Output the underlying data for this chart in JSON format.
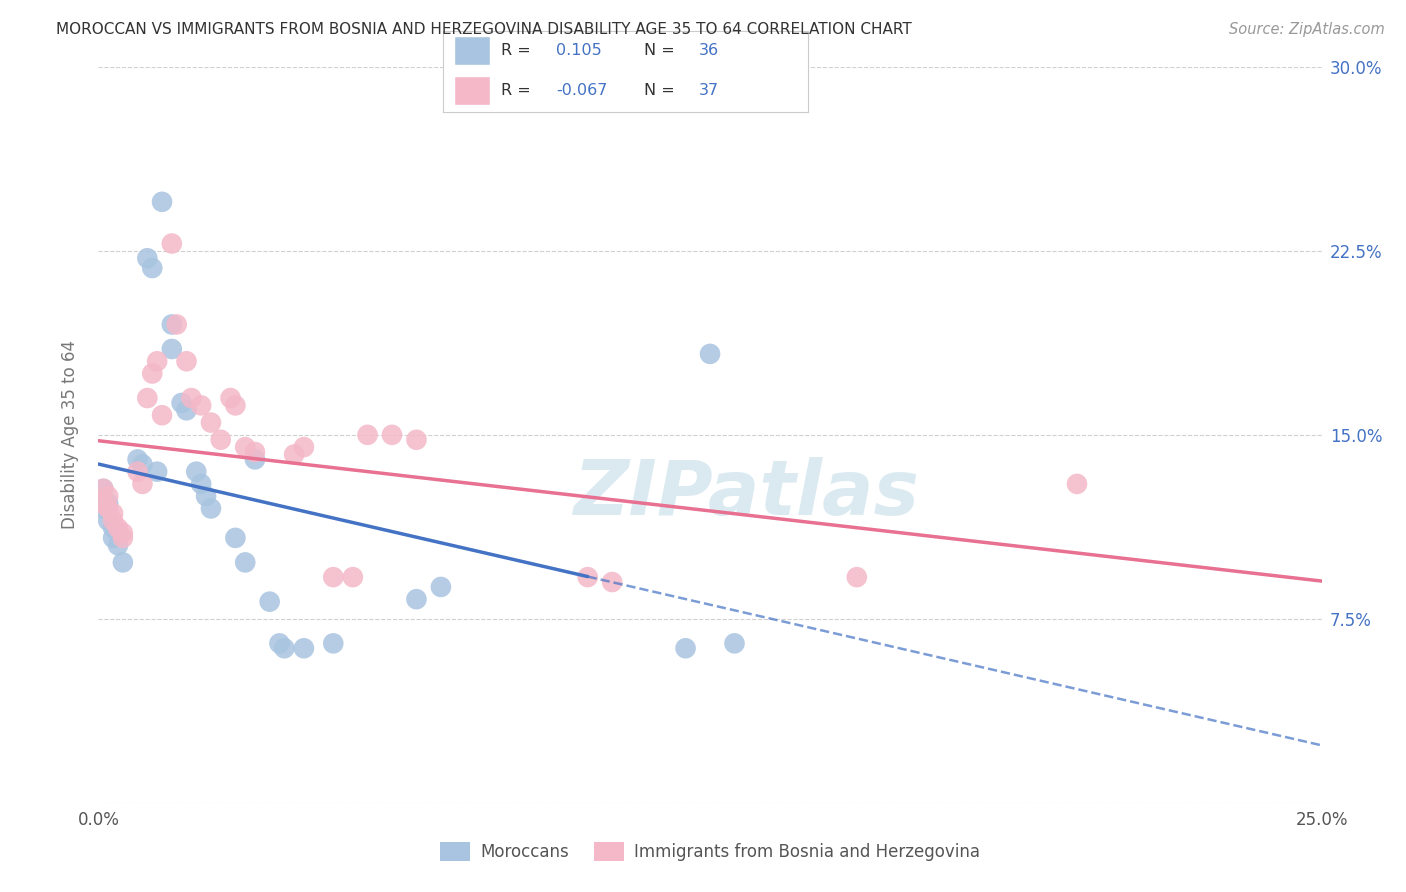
{
  "title": "MOROCCAN VS IMMIGRANTS FROM BOSNIA AND HERZEGOVINA DISABILITY AGE 35 TO 64 CORRELATION CHART",
  "source": "Source: ZipAtlas.com",
  "ylabel": "Disability Age 35 to 64",
  "xlim": [
    0.0,
    0.25
  ],
  "ylim": [
    0.0,
    0.3
  ],
  "xticks": [
    0.0,
    0.05,
    0.1,
    0.15,
    0.2,
    0.25
  ],
  "yticks": [
    0.0,
    0.075,
    0.15,
    0.225,
    0.3
  ],
  "xticklabels": [
    "0.0%",
    "",
    "",
    "",
    "",
    "25.0%"
  ],
  "yticklabels_right": [
    "",
    "7.5%",
    "15.0%",
    "22.5%",
    "30.0%"
  ],
  "moroccan_R": "0.105",
  "moroccan_N": "36",
  "bosnia_R": "-0.067",
  "bosnia_N": "37",
  "moroccan_color": "#a8c4e0",
  "bosnia_color": "#f4b8c8",
  "moroccan_line_color": "#4472c4",
  "bosnia_line_color": "#e87090",
  "right_axis_color": "#4472c4",
  "moroccan_x": [
    0.001,
    0.001,
    0.002,
    0.002,
    0.003,
    0.003,
    0.004,
    0.004,
    0.005,
    0.008,
    0.009,
    0.01,
    0.011,
    0.012,
    0.013,
    0.015,
    0.015,
    0.017,
    0.018,
    0.02,
    0.021,
    0.022,
    0.023,
    0.028,
    0.03,
    0.032,
    0.035,
    0.037,
    0.038,
    0.042,
    0.048,
    0.065,
    0.07,
    0.12,
    0.125,
    0.13
  ],
  "moroccan_y": [
    0.128,
    0.12,
    0.122,
    0.115,
    0.112,
    0.108,
    0.11,
    0.105,
    0.098,
    0.14,
    0.138,
    0.222,
    0.218,
    0.135,
    0.245,
    0.195,
    0.185,
    0.163,
    0.16,
    0.135,
    0.13,
    0.125,
    0.12,
    0.108,
    0.098,
    0.14,
    0.082,
    0.065,
    0.063,
    0.063,
    0.065,
    0.083,
    0.088,
    0.063,
    0.183,
    0.065
  ],
  "bosnia_x": [
    0.001,
    0.001,
    0.002,
    0.002,
    0.003,
    0.003,
    0.004,
    0.005,
    0.005,
    0.008,
    0.009,
    0.01,
    0.011,
    0.012,
    0.013,
    0.015,
    0.016,
    0.018,
    0.019,
    0.021,
    0.023,
    0.025,
    0.027,
    0.028,
    0.03,
    0.032,
    0.04,
    0.042,
    0.048,
    0.052,
    0.055,
    0.06,
    0.065,
    0.1,
    0.105,
    0.155,
    0.2
  ],
  "bosnia_y": [
    0.128,
    0.122,
    0.125,
    0.12,
    0.118,
    0.115,
    0.112,
    0.11,
    0.108,
    0.135,
    0.13,
    0.165,
    0.175,
    0.18,
    0.158,
    0.228,
    0.195,
    0.18,
    0.165,
    0.162,
    0.155,
    0.148,
    0.165,
    0.162,
    0.145,
    0.143,
    0.142,
    0.145,
    0.092,
    0.092,
    0.15,
    0.15,
    0.148,
    0.092,
    0.09,
    0.092,
    0.13
  ],
  "watermark": "ZIPatlas",
  "background_color": "#ffffff",
  "grid_color": "#d0d0d0"
}
